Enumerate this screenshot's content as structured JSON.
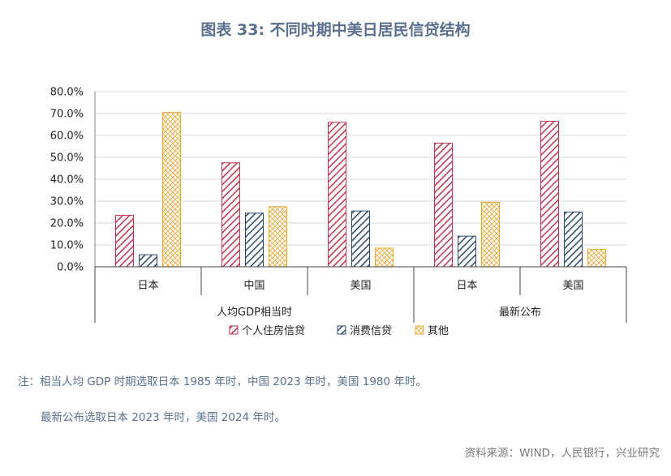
{
  "title": "图表 33: 不同时期中美日居民信贷结构",
  "chart_data": {
    "type": "bar",
    "ylim": [
      0,
      80
    ],
    "ytick_step": 10,
    "y_tick_labels": [
      "0.0%",
      "10.0%",
      "20.0%",
      "30.0%",
      "40.0%",
      "50.0%",
      "60.0%",
      "70.0%",
      "80.0%"
    ],
    "grid": true,
    "legend_position": "bottom",
    "categories": [
      "日本",
      "中国",
      "美国",
      "日本",
      "美国"
    ],
    "groups": [
      {
        "label": "人均GDP相当时",
        "count": 3
      },
      {
        "label": "最新公布",
        "count": 2
      }
    ],
    "series": [
      {
        "name": "个人住房信贷",
        "color": "#c0334d",
        "pattern": "diagonal-right",
        "values": [
          23.5,
          47.5,
          66.0,
          56.5,
          66.5
        ]
      },
      {
        "name": "消费信贷",
        "color": "#2e4a6b",
        "pattern": "diagonal-right",
        "values": [
          5.5,
          24.5,
          25.5,
          14.0,
          25.0
        ]
      },
      {
        "name": "其他",
        "color": "#e8a838",
        "pattern": "crosshatch",
        "values": [
          70.5,
          27.5,
          8.5,
          29.5,
          8.0
        ]
      }
    ]
  },
  "notes": {
    "line1": "注：相当人均 GDP 时期选取日本 1985 年时，中国 2023 年时，美国 1980 年时。",
    "line2": "最新公布选取日本 2023 年时，美国 2024 年时。"
  },
  "source": "资料来源：WIND，人民银行，兴业研究"
}
